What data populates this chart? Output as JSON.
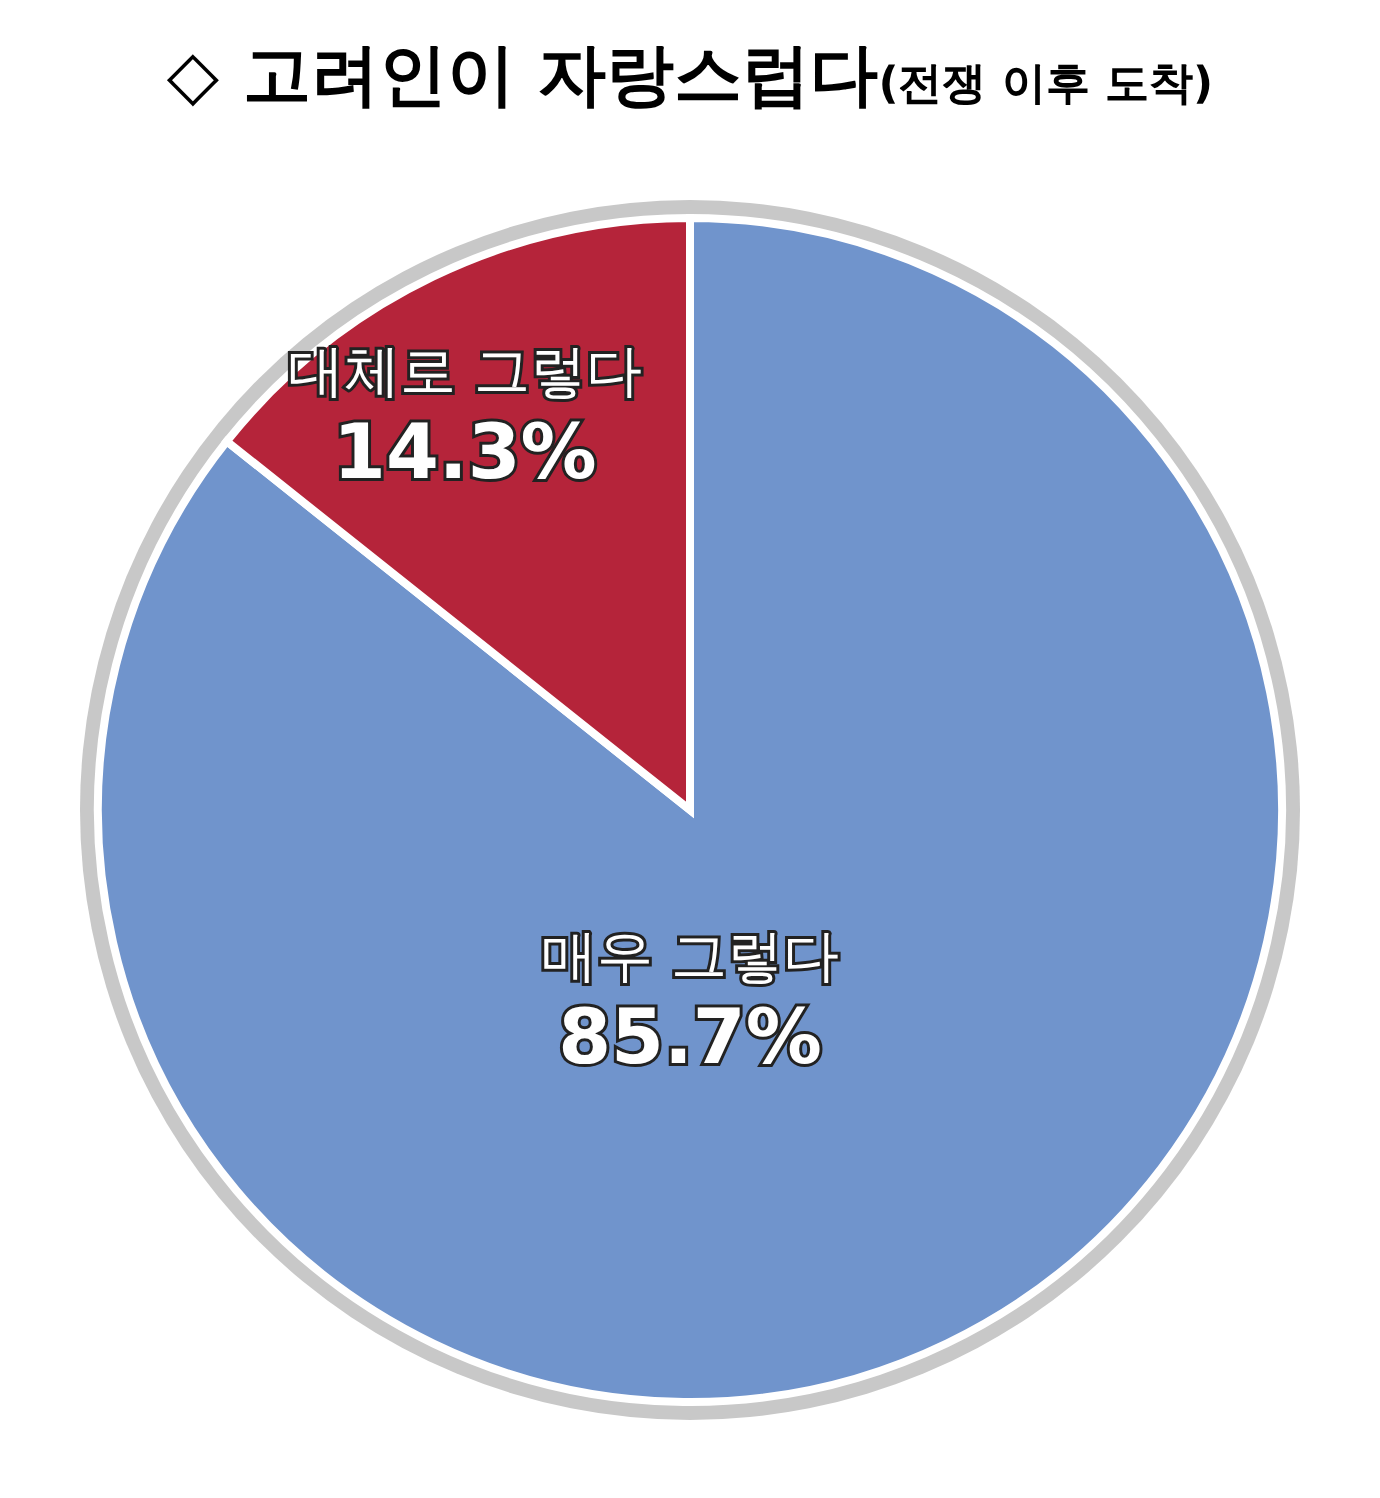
{
  "chart_data": {
    "type": "pie",
    "title": "◇ 고려인이 자랑스럽다",
    "subtitle": "(전쟁 이후 도착)",
    "categories": [
      "매우 그렇다",
      "대체로 그렇다"
    ],
    "values": [
      85.7,
      14.3
    ],
    "colors": [
      "#7094cc",
      "#b5243a"
    ],
    "value_labels": [
      "85.7%",
      "14.3%"
    ],
    "data_labels": true,
    "legend": false
  }
}
